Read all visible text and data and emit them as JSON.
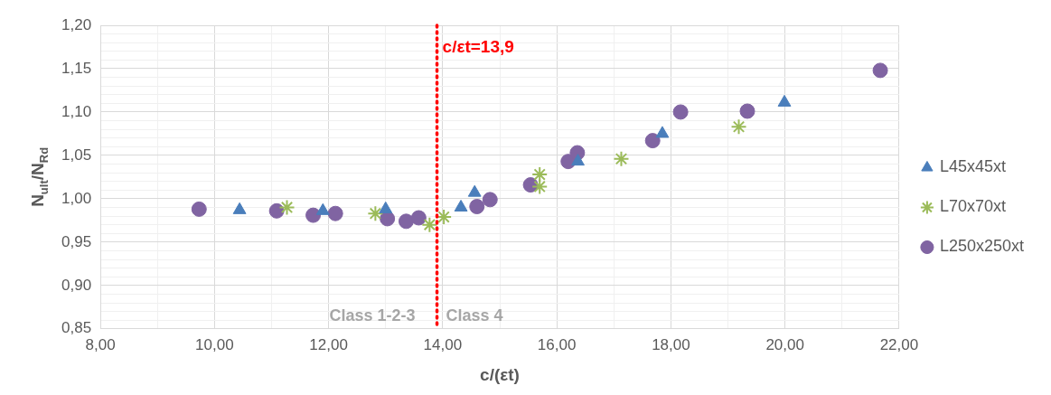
{
  "chart_data": {
    "type": "scatter",
    "xlabel": "c/(εt)",
    "ylabel": "N$_{ult}$/N$_{Rd}$",
    "xlim": [
      8,
      22
    ],
    "ylim": [
      0.85,
      1.2
    ],
    "xticks": [
      {
        "value": 8,
        "label": "8,00"
      },
      {
        "value": 9,
        "label": null
      },
      {
        "value": 10,
        "label": "10,00"
      },
      {
        "value": 11,
        "label": null
      },
      {
        "value": 12,
        "label": "12,00"
      },
      {
        "value": 13,
        "label": null
      },
      {
        "value": 14,
        "label": "14,00"
      },
      {
        "value": 15,
        "label": null
      },
      {
        "value": 16,
        "label": "16,00"
      },
      {
        "value": 17,
        "label": null
      },
      {
        "value": 18,
        "label": "18,00"
      },
      {
        "value": 19,
        "label": null
      },
      {
        "value": 20,
        "label": "20,00"
      },
      {
        "value": 21,
        "label": null
      },
      {
        "value": 22,
        "label": "22,00"
      }
    ],
    "yticks": [
      {
        "value": 0.85,
        "label": "0,85"
      },
      {
        "value": 0.86,
        "label": null
      },
      {
        "value": 0.87,
        "label": null
      },
      {
        "value": 0.88,
        "label": null
      },
      {
        "value": 0.89,
        "label": null
      },
      {
        "value": 0.9,
        "label": "0,90"
      },
      {
        "value": 0.91,
        "label": null
      },
      {
        "value": 0.92,
        "label": null
      },
      {
        "value": 0.93,
        "label": null
      },
      {
        "value": 0.94,
        "label": null
      },
      {
        "value": 0.95,
        "label": "0,95"
      },
      {
        "value": 0.96,
        "label": null
      },
      {
        "value": 0.97,
        "label": null
      },
      {
        "value": 0.98,
        "label": null
      },
      {
        "value": 0.99,
        "label": null
      },
      {
        "value": 1.0,
        "label": "1,00"
      },
      {
        "value": 1.01,
        "label": null
      },
      {
        "value": 1.02,
        "label": null
      },
      {
        "value": 1.03,
        "label": null
      },
      {
        "value": 1.04,
        "label": null
      },
      {
        "value": 1.05,
        "label": "1,05"
      },
      {
        "value": 1.06,
        "label": null
      },
      {
        "value": 1.07,
        "label": null
      },
      {
        "value": 1.08,
        "label": null
      },
      {
        "value": 1.09,
        "label": null
      },
      {
        "value": 1.1,
        "label": "1,10"
      },
      {
        "value": 1.11,
        "label": null
      },
      {
        "value": 1.12,
        "label": null
      },
      {
        "value": 1.13,
        "label": null
      },
      {
        "value": 1.14,
        "label": null
      },
      {
        "value": 1.15,
        "label": "1,15"
      },
      {
        "value": 1.16,
        "label": null
      },
      {
        "value": 1.17,
        "label": null
      },
      {
        "value": 1.18,
        "label": null
      },
      {
        "value": 1.19,
        "label": null
      },
      {
        "value": 1.2,
        "label": "1,20"
      }
    ],
    "grid": true,
    "legend": "right",
    "series": [
      {
        "name": "L45x45xt",
        "color": "#4a7ebb",
        "marker": "triangle",
        "x": [
          10.44,
          11.9,
          13.0,
          14.32,
          14.56,
          16.37,
          17.85,
          19.99
        ],
        "values": [
          0.987,
          0.986,
          0.988,
          0.99,
          1.007,
          1.043,
          1.075,
          1.111
        ]
      },
      {
        "name": "L70x70xt",
        "color": "#9bbb59",
        "marker": "cross",
        "x": [
          11.27,
          12.82,
          13.77,
          14.02,
          15.7,
          15.7,
          17.13,
          19.19
        ],
        "values": [
          0.99,
          0.983,
          0.97,
          0.979,
          1.028,
          1.014,
          1.046,
          1.083
        ]
      },
      {
        "name": "L250x250xt",
        "color": "#8064a2",
        "marker": "circle",
        "x": [
          9.73,
          11.09,
          11.73,
          12.12,
          13.03,
          13.36,
          13.58,
          14.6,
          14.83,
          15.54,
          16.2,
          16.36,
          17.68,
          18.17,
          19.34,
          21.67
        ],
        "values": [
          0.988,
          0.986,
          0.981,
          0.983,
          0.977,
          0.974,
          0.978,
          0.991,
          0.999,
          1.016,
          1.043,
          1.053,
          1.067,
          1.1,
          1.101,
          1.148
        ]
      }
    ],
    "ref_lines": [
      {
        "axis": "x",
        "value": 13.9,
        "label": "c/εt=13,9",
        "color": "#ff0000",
        "line_style": "dotted"
      }
    ],
    "annotations": [
      "Class 1-2-3",
      "Class 4"
    ]
  }
}
